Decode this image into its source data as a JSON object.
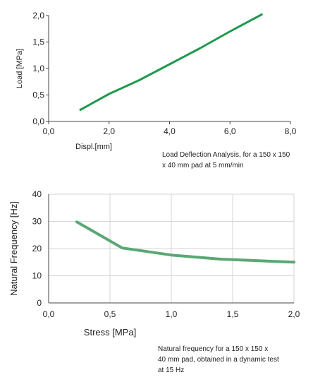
{
  "chart_data": [
    {
      "type": "line",
      "title": "",
      "xlabel": "Displ.[mm]",
      "ylabel": "Load [MPa]",
      "xlim": [
        0,
        8
      ],
      "ylim": [
        0,
        2
      ],
      "xticks": [
        "0,0",
        "2,0",
        "4,0",
        "6,0",
        "8,0"
      ],
      "yticks": [
        "0,0",
        "0,5",
        "1,0",
        "1,5",
        "2,0"
      ],
      "grid": false,
      "color": "#1e9a4e",
      "series": [
        {
          "x": [
            1.05,
            2.0,
            3.0,
            4.0,
            5.0,
            6.0,
            7.05
          ],
          "y": [
            0.22,
            0.52,
            0.78,
            1.08,
            1.38,
            1.7,
            2.02
          ]
        }
      ],
      "caption": [
        "Load Deflection Analysis, for a 150 x 150",
        "x 40 mm  pad at 5 mm/min"
      ]
    },
    {
      "type": "line",
      "title": "",
      "xlabel": "Stress [MPa]",
      "ylabel": "Natural Frequency [Hz]",
      "xlim": [
        0,
        2
      ],
      "ylim": [
        0,
        40
      ],
      "xticks": [
        "0,0",
        "0,5",
        "1,0",
        "1,5",
        "2,0"
      ],
      "yticks": [
        "0",
        "10",
        "20",
        "30",
        "40"
      ],
      "grid": true,
      "color": "#5aa874",
      "series": [
        {
          "x": [
            0.23,
            0.6,
            1.0,
            1.4,
            2.0
          ],
          "y": [
            29.8,
            20.2,
            17.6,
            16.1,
            15.0
          ]
        }
      ],
      "caption": [
        "Natural frequency  for a 150 x 150 x",
        "40 mm  pad, obtained in a dynamic test",
        "at 15 Hz"
      ]
    }
  ]
}
